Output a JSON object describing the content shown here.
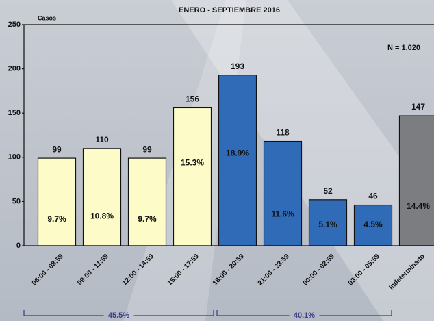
{
  "chart_data": {
    "type": "bar",
    "title": "ENERO - SEPTIEMBRE 2016",
    "ylabel": "Casos",
    "annotation": "N = 1,020",
    "categories": [
      "06:00 - 08:59",
      "09:00 - 11:59",
      "12:00 - 14:59",
      "15:00 - 17:59",
      "18:00 - 20:59",
      "21:00 - 23:59",
      "00:00 - 02:59",
      "03:00 - 05:59",
      "Indeterminado"
    ],
    "values": [
      99,
      110,
      99,
      156,
      193,
      118,
      52,
      46,
      147
    ],
    "percent_labels": [
      "9.7%",
      "10.8%",
      "9.7%",
      "15.3%",
      "18.9%",
      "11.6%",
      "5.1%",
      "4.5%",
      "14.4%"
    ],
    "colors": [
      "#fdfbc8",
      "#fdfbc8",
      "#fdfbc8",
      "#fdfbc8",
      "#2f6bb7",
      "#2f6bb7",
      "#2f6bb7",
      "#2f6bb7",
      "#7c7d80"
    ],
    "ylim": [
      0,
      250
    ],
    "yticks": [
      0,
      50,
      100,
      150,
      200,
      250
    ],
    "groups": [
      {
        "label": "45.5%"
      },
      {
        "label": "40.1%"
      }
    ]
  }
}
